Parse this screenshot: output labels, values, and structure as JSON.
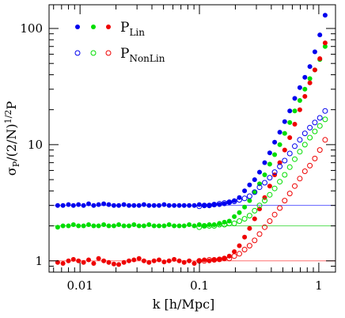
{
  "chart_data": {
    "type": "scatter",
    "x_scale": "log",
    "y_scale": "log",
    "xlim": [
      0.0055,
      1.38
    ],
    "ylim": [
      0.8,
      160
    ],
    "xlabel": "k [h/Mpc]",
    "ylabel": {
      "main": "σ",
      "sub": "P",
      "rest": "/(2/N)",
      "sup": "1/2",
      "tail": "P"
    },
    "x_ticks": [
      {
        "value": 0.01,
        "label": "0.01"
      },
      {
        "value": 0.1,
        "label": "0.1"
      },
      {
        "value": 1,
        "label": "1"
      }
    ],
    "y_ticks": [
      {
        "value": 1,
        "label": "1"
      },
      {
        "value": 10,
        "label": "10"
      },
      {
        "value": 100,
        "label": "100"
      }
    ],
    "legend": [
      {
        "main": "P",
        "sub": "Lin",
        "marker": "filled"
      },
      {
        "main": "P",
        "sub": "NonLin",
        "marker": "open"
      }
    ],
    "reference_lines": [
      {
        "y": 3.0,
        "color": "#5f5fff"
      },
      {
        "y": 2.0,
        "color": "#5fdf5f"
      },
      {
        "y": 1.0,
        "color": "#ff7070"
      }
    ],
    "colors": {
      "blue": "#0000ee",
      "green": "#00dd00",
      "red": "#ee0000"
    },
    "series": [
      {
        "color": "blue",
        "marker": "filled",
        "x": [
          0.0065,
          0.0072,
          0.008,
          0.0088,
          0.0097,
          0.0107,
          0.0118,
          0.013,
          0.0143,
          0.0158,
          0.0174,
          0.0192,
          0.0211,
          0.0233,
          0.0257,
          0.0283,
          0.0312,
          0.0343,
          0.0378,
          0.0417,
          0.0459,
          0.0506,
          0.0557,
          0.0614,
          0.0677,
          0.0745,
          0.0821,
          0.0905,
          0.0997,
          0.1099,
          0.121,
          0.133,
          0.147,
          0.162,
          0.178,
          0.196,
          0.216,
          0.239,
          0.263,
          0.29,
          0.319,
          0.352,
          0.388,
          0.427,
          0.471,
          0.518,
          0.571,
          0.629,
          0.693,
          0.764,
          0.842,
          0.927,
          1.02,
          1.13
        ],
        "y": [
          3.0,
          3.0,
          3.05,
          3.0,
          3.05,
          3.0,
          3.1,
          3.0,
          3.05,
          3.1,
          3.05,
          3.0,
          3.0,
          3.05,
          3.0,
          3.0,
          3.0,
          3.05,
          3.0,
          3.0,
          3.0,
          3.05,
          3.0,
          3.0,
          3.0,
          3.0,
          3.0,
          3.0,
          3.05,
          3.0,
          3.0,
          3.05,
          3.05,
          3.1,
          3.2,
          3.3,
          3.5,
          4.0,
          4.5,
          5.0,
          5.8,
          7.0,
          8.5,
          10.5,
          12.8,
          15.8,
          19.5,
          25,
          31,
          38,
          47,
          63,
          88,
          130
        ]
      },
      {
        "color": "green",
        "marker": "filled",
        "x": [
          0.0065,
          0.0072,
          0.008,
          0.0088,
          0.0097,
          0.0107,
          0.0118,
          0.013,
          0.0143,
          0.0158,
          0.0174,
          0.0192,
          0.0211,
          0.0233,
          0.0257,
          0.0283,
          0.0312,
          0.0343,
          0.0378,
          0.0417,
          0.0459,
          0.0506,
          0.0557,
          0.0614,
          0.0677,
          0.0745,
          0.0821,
          0.0905,
          0.0997,
          0.1099,
          0.121,
          0.133,
          0.147,
          0.162,
          0.178,
          0.196,
          0.216,
          0.239,
          0.263,
          0.29,
          0.319,
          0.352,
          0.388,
          0.427,
          0.471,
          0.518,
          0.571,
          0.629,
          0.693,
          0.764,
          0.842,
          0.927,
          1.02,
          1.13
        ],
        "y": [
          1.95,
          2.0,
          2.0,
          2.05,
          2.0,
          2.0,
          2.05,
          2.0,
          2.0,
          2.05,
          2.0,
          2.0,
          2.05,
          2.0,
          2.0,
          2.05,
          2.0,
          2.0,
          2.05,
          2.0,
          2.0,
          2.0,
          2.05,
          2.0,
          2.0,
          2.0,
          2.05,
          2.0,
          2.05,
          2.0,
          2.05,
          2.05,
          2.1,
          2.15,
          2.2,
          2.4,
          2.6,
          2.9,
          3.3,
          3.9,
          4.6,
          5.5,
          6.8,
          8.2,
          10.0,
          12.5,
          15.5,
          19.5,
          24,
          30,
          37,
          44,
          54,
          70
        ]
      },
      {
        "color": "red",
        "marker": "filled",
        "x": [
          0.0065,
          0.0072,
          0.008,
          0.0088,
          0.0097,
          0.0107,
          0.0118,
          0.013,
          0.0143,
          0.0158,
          0.0174,
          0.0192,
          0.0211,
          0.0233,
          0.0257,
          0.0283,
          0.0312,
          0.0343,
          0.0378,
          0.0417,
          0.0459,
          0.0506,
          0.0557,
          0.0614,
          0.0677,
          0.0745,
          0.0821,
          0.0905,
          0.0997,
          0.1099,
          0.121,
          0.133,
          0.147,
          0.162,
          0.178,
          0.196,
          0.216,
          0.239,
          0.263,
          0.29,
          0.319,
          0.352,
          0.388,
          0.427,
          0.471,
          0.518,
          0.571,
          0.629,
          0.693,
          0.764,
          0.842,
          0.927,
          1.02,
          1.13
        ],
        "y": [
          0.97,
          0.95,
          1.0,
          1.03,
          1.0,
          0.97,
          1.02,
          0.95,
          1.05,
          1.0,
          0.97,
          0.94,
          0.93,
          0.97,
          1.0,
          1.02,
          1.05,
          1.0,
          0.97,
          1.0,
          1.02,
          0.98,
          1.0,
          1.03,
          1.0,
          0.97,
          1.0,
          0.95,
          1.0,
          1.02,
          1.0,
          1.02,
          1.03,
          1.05,
          1.1,
          1.2,
          1.35,
          1.6,
          1.9,
          2.3,
          2.8,
          3.5,
          4.4,
          5.5,
          7.0,
          9.0,
          11.5,
          15,
          20,
          26,
          34,
          44,
          55,
          75
        ]
      },
      {
        "color": "blue",
        "marker": "open",
        "x": [
          0.0997,
          0.1099,
          0.121,
          0.133,
          0.147,
          0.162,
          0.178,
          0.196,
          0.216,
          0.239,
          0.263,
          0.29,
          0.319,
          0.352,
          0.388,
          0.427,
          0.471,
          0.518,
          0.571,
          0.629,
          0.693,
          0.764,
          0.842,
          0.927,
          1.02,
          1.13
        ],
        "y": [
          2.95,
          3.0,
          3.0,
          3.05,
          3.1,
          3.15,
          3.2,
          3.25,
          3.35,
          3.45,
          3.6,
          3.9,
          4.3,
          4.7,
          5.2,
          5.8,
          6.5,
          7.3,
          8.4,
          9.7,
          11.0,
          12.5,
          14.0,
          15.5,
          17.0,
          19.5
        ]
      },
      {
        "color": "green",
        "marker": "open",
        "x": [
          0.0997,
          0.1099,
          0.121,
          0.133,
          0.147,
          0.162,
          0.178,
          0.196,
          0.216,
          0.239,
          0.263,
          0.29,
          0.319,
          0.352,
          0.388,
          0.427,
          0.471,
          0.518,
          0.571,
          0.629,
          0.693,
          0.764,
          0.842,
          0.927,
          1.02,
          1.13
        ],
        "y": [
          1.95,
          2.0,
          2.0,
          2.0,
          2.05,
          2.05,
          2.1,
          2.1,
          2.2,
          2.3,
          2.45,
          2.7,
          3.0,
          3.3,
          3.7,
          4.2,
          4.8,
          5.5,
          6.4,
          7.5,
          8.7,
          10.0,
          11.5,
          13.0,
          14.5,
          16.5
        ]
      },
      {
        "color": "red",
        "marker": "open",
        "x": [
          0.0997,
          0.1099,
          0.121,
          0.133,
          0.147,
          0.162,
          0.178,
          0.196,
          0.216,
          0.239,
          0.263,
          0.29,
          0.319,
          0.352,
          0.388,
          0.427,
          0.471,
          0.518,
          0.571,
          0.629,
          0.693,
          0.764,
          0.842,
          0.927,
          1.02,
          1.13
        ],
        "y": [
          1.0,
          1.0,
          1.02,
          1.02,
          1.03,
          1.05,
          1.05,
          1.1,
          1.15,
          1.25,
          1.35,
          1.5,
          1.7,
          1.95,
          2.2,
          2.5,
          2.85,
          3.3,
          3.8,
          4.4,
          5.1,
          5.9,
          6.6,
          7.6,
          9.0,
          11.0
        ]
      }
    ]
  }
}
